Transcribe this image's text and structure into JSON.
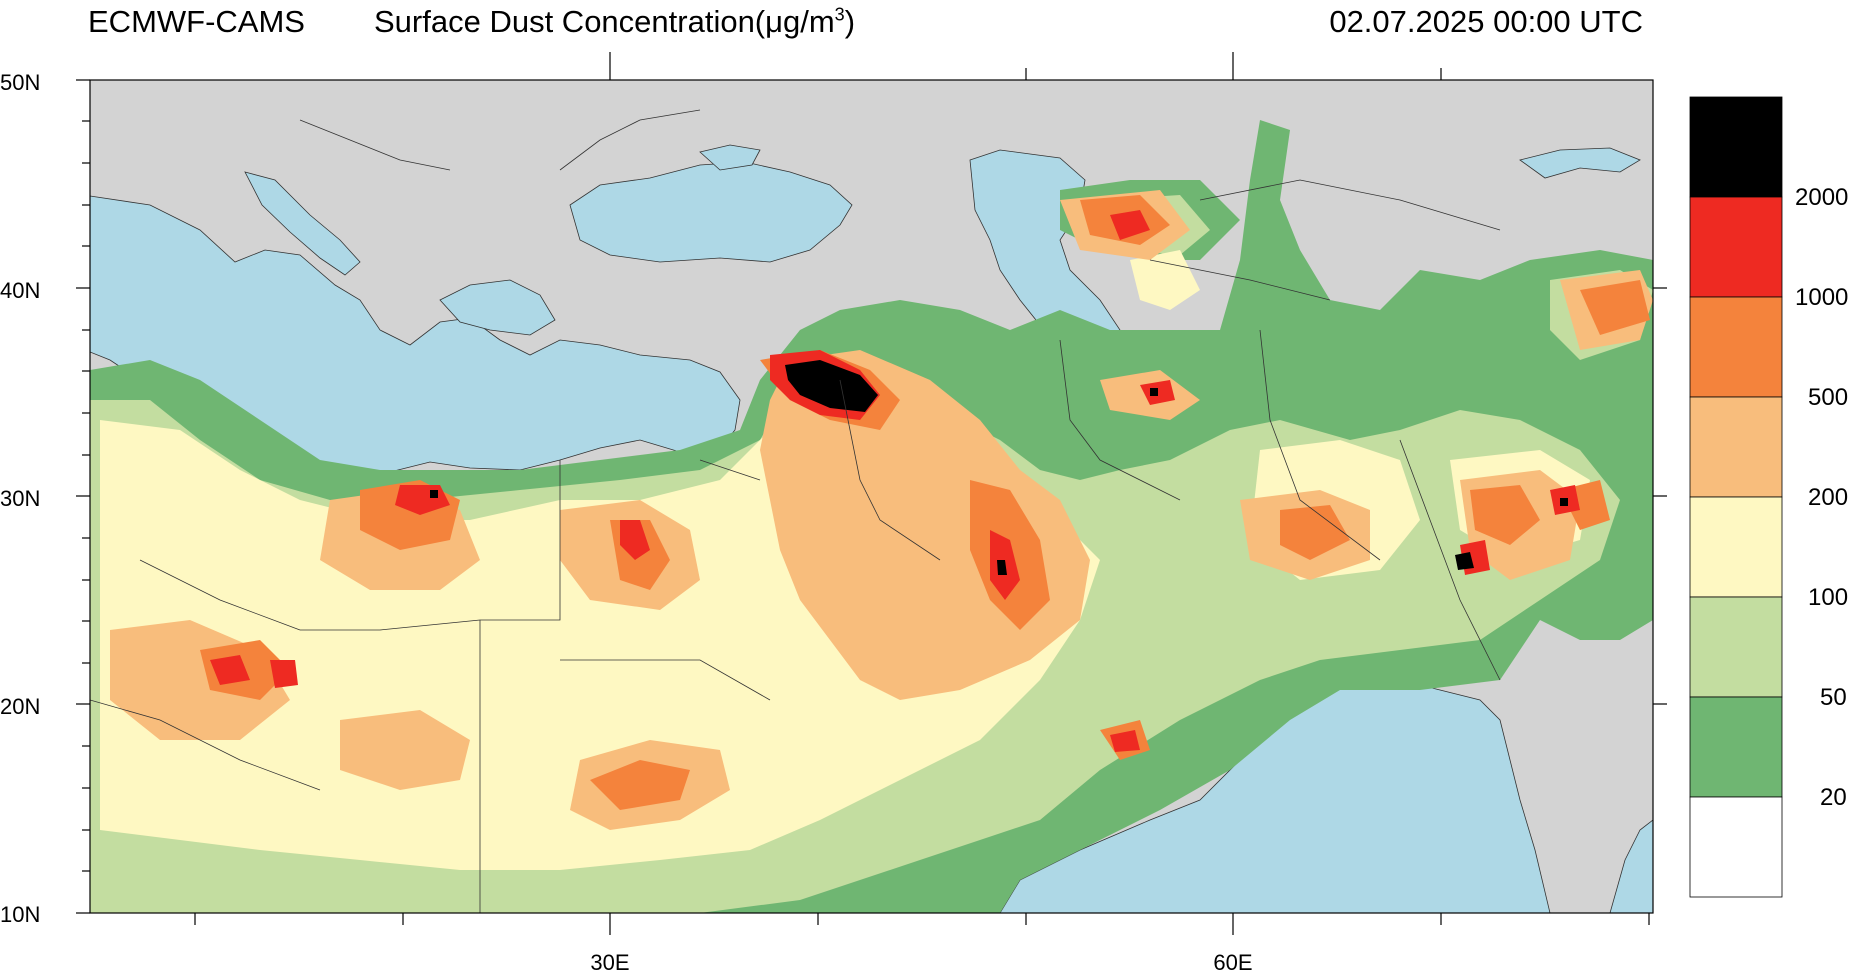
{
  "header": {
    "left": "ECMWF-CAMS",
    "title_main": "Surface Dust Concentration(μg/m",
    "title_sup": "3",
    "title_end": ")",
    "datetime": "02.07.2025 00:00 UTC"
  },
  "axes": {
    "lat_labels": [
      "50N",
      "40N",
      "30N",
      "20N",
      "10N"
    ],
    "lon_labels": [
      "30E",
      "60E"
    ]
  },
  "colorbar": {
    "labels": [
      "2000",
      "1000",
      "500",
      "200",
      "100",
      "50",
      "20"
    ],
    "colors": [
      "#000000",
      "#ee2a22",
      "#f4833c",
      "#f8bd7c",
      "#fef8c2",
      "#c3dda0",
      "#6fb672",
      "#ffffff"
    ]
  },
  "map_colors": {
    "land": "#d3d3d3",
    "sea": "#aed8e6"
  }
}
